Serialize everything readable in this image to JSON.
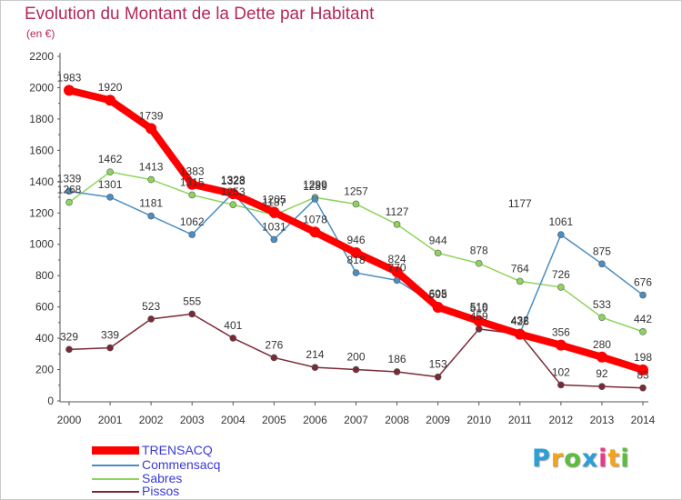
{
  "chart_data": {
    "type": "line",
    "title": "Evolution du Montant de la Dette par Habitant",
    "subtitle": "(en €)",
    "x": [
      "2000",
      "2001",
      "2002",
      "2003",
      "2004",
      "2005",
      "2006",
      "2007",
      "2008",
      "2009",
      "2010",
      "2011",
      "2012",
      "2013",
      "2014"
    ],
    "ylim": [
      0,
      2200
    ],
    "yticks": [
      "0",
      "200",
      "400",
      "600",
      "800",
      "1000",
      "1200",
      "1400",
      "1600",
      "1800",
      "2000",
      "2200"
    ],
    "grid": false,
    "legend_position": "bottom-left",
    "series": [
      {
        "name": "Pissos",
        "color": "#7a2a35",
        "values": [
          329,
          339,
          523,
          555,
          401,
          276,
          214,
          200,
          186,
          153,
          459,
          426,
          102,
          92,
          83
        ],
        "labels": [
          "329",
          "339",
          "523",
          "555",
          "401",
          "276",
          "214",
          "200",
          "186",
          "153",
          "",
          "",
          "102",
          "92",
          "83"
        ]
      },
      {
        "name": "Sabres",
        "color": "#8ed45c",
        "values": [
          1268,
          1462,
          1413,
          1315,
          1253,
          1187,
          1299,
          1257,
          1127,
          944,
          878,
          764,
          726,
          533,
          442
        ],
        "labels": [
          "",
          "1462",
          "1413",
          "",
          "",
          "",
          "",
          "1257",
          "1127",
          "944",
          "878",
          "764",
          "726",
          "533",
          "442"
        ]
      },
      {
        "name": "Commensacq",
        "color": "#4a8ec4",
        "values": [
          1339,
          1301,
          1181,
          1062,
          1328,
          1031,
          1289,
          818,
          770,
          605,
          519,
          432,
          1061,
          875,
          676
        ],
        "labels": [
          "",
          "1301",
          "1181",
          "1062",
          "",
          "1031",
          "",
          "818",
          "",
          "",
          "",
          "",
          "1061",
          "875",
          "676"
        ]
      },
      {
        "name": "TRENSACQ",
        "color": "#ff0000",
        "values": [
          1983,
          1920,
          1739,
          1383,
          1323,
          1205,
          1078,
          946,
          824,
          598,
          510,
          426,
          356,
          280,
          198
        ],
        "labels": [
          "1983",
          "1920",
          "1739",
          "1383",
          "",
          "1205",
          "1078",
          "946",
          "824",
          "",
          "",
          "",
          "356",
          "280",
          "198"
        ]
      }
    ],
    "extra_labels": [
      {
        "text": "1339",
        "x": "2000",
        "y": 1339
      },
      {
        "text": "1268",
        "x": "2000",
        "y": 1268
      },
      {
        "text": "1315",
        "x": "2003",
        "y": 1315
      },
      {
        "text": "1328",
        "x": "2004",
        "y": 1328
      },
      {
        "text": "1323",
        "x": "2004",
        "y": 1323
      },
      {
        "text": "1253",
        "x": "2004",
        "y": 1253
      },
      {
        "text": "1187",
        "x": "2005",
        "y": 1187
      },
      {
        "text": "1299",
        "x": "2006",
        "y": 1299
      },
      {
        "text": "1289",
        "x": "2006",
        "y": 1289
      },
      {
        "text": "770",
        "x": "2008",
        "y": 770
      },
      {
        "text": "605",
        "x": "2009",
        "y": 605
      },
      {
        "text": "598",
        "x": "2009",
        "y": 598
      },
      {
        "text": "519",
        "x": "2010",
        "y": 519
      },
      {
        "text": "510",
        "x": "2010",
        "y": 510
      },
      {
        "text": "459",
        "x": "2010",
        "y": 459
      },
      {
        "text": "432",
        "x": "2011",
        "y": 432
      },
      {
        "text": "426",
        "x": "2011",
        "y": 426
      },
      {
        "text": "1177",
        "x": "2011",
        "y": 1177
      }
    ]
  },
  "legend": {
    "items": [
      {
        "name": "TRENSACQ",
        "color": "#ff0000",
        "text_color": "#3a3ad8"
      },
      {
        "name": "Commensacq",
        "color": "#4a8ec4",
        "text_color": "#3a3ad8"
      },
      {
        "name": "Sabres",
        "color": "#8ed45c",
        "text_color": "#3a3ad8"
      },
      {
        "name": "Pissos",
        "color": "#7a2a35",
        "text_color": "#3a3ad8"
      }
    ]
  },
  "logo": {
    "letters": [
      "P",
      "r",
      "o",
      "x",
      "i",
      "t",
      "i"
    ],
    "colors": [
      "#2a9fd8",
      "#f5a31a",
      "#5cbf3c",
      "#2a9fd8",
      "#e83a8c",
      "#f5a31a",
      "#5cbf3c"
    ]
  }
}
